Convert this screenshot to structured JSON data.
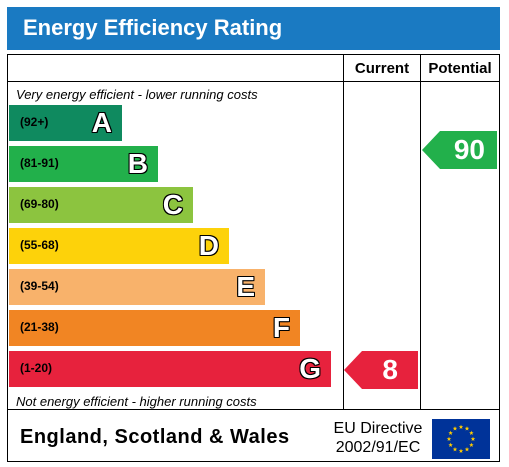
{
  "title": "Energy Efficiency Rating",
  "columns": {
    "current": "Current",
    "potential": "Potential"
  },
  "top_caption": "Very energy efficient - lower running costs",
  "bottom_caption": "Not energy efficient - higher running costs",
  "bands": [
    {
      "range": "(92+)",
      "letter": "A",
      "color": "#0f8a5f"
    },
    {
      "range": "(81-91)",
      "letter": "B",
      "color": "#22b04b"
    },
    {
      "range": "(69-80)",
      "letter": "C",
      "color": "#8cc43f"
    },
    {
      "range": "(55-68)",
      "letter": "D",
      "color": "#fdd20a"
    },
    {
      "range": "(39-54)",
      "letter": "E",
      "color": "#f8b26b"
    },
    {
      "range": "(21-38)",
      "letter": "F",
      "color": "#f18523"
    },
    {
      "range": "(1-20)",
      "letter": "G",
      "color": "#e7223d"
    }
  ],
  "current": {
    "value": "8",
    "band": "G",
    "color": "#e7223d"
  },
  "potential": {
    "value": "90",
    "band": "B",
    "color": "#22b04b"
  },
  "footer": {
    "region": "England, Scotland & Wales",
    "directive_line1": "EU Directive",
    "directive_line2": "2002/91/EC"
  }
}
